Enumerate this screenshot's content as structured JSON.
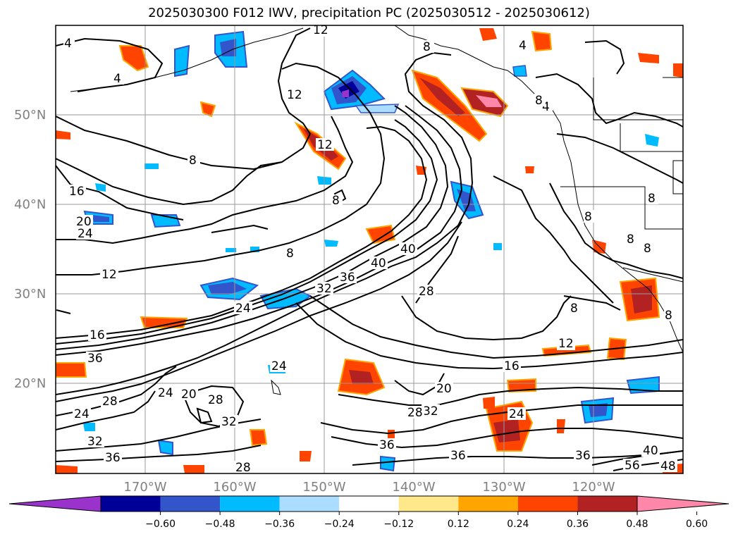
{
  "title": "2025030300 F012 IWV, precipitation PC (2025030512 - 2025030612)",
  "latitude_labels": [
    "50°N",
    "40°N",
    "30°N",
    "20°N"
  ],
  "longitude_labels": [
    "170°W",
    "160°W",
    "150°W",
    "140°W",
    "130°W",
    "120°W"
  ],
  "colorbar": {
    "tick_labels": [
      "−0.60",
      "−0.48",
      "−0.36",
      "−0.24",
      "−0.12",
      "0.12",
      "0.24",
      "0.36",
      "0.48",
      "0.60"
    ],
    "bins": [
      {
        "color": "#9933cc"
      },
      {
        "color": "#000099"
      },
      {
        "color": "#3355cc"
      },
      {
        "color": "#00bbff"
      },
      {
        "color": "#aaddff"
      },
      {
        "color": "#ffffff"
      },
      {
        "color": "#ffe88a"
      },
      {
        "color": "#ffa500"
      },
      {
        "color": "#ff4400"
      },
      {
        "color": "#b22222"
      },
      {
        "color": "#ff88aa"
      }
    ]
  },
  "contour_labels": [
    "4",
    "12",
    "8",
    "4",
    "12",
    "4",
    "8",
    "12",
    "8",
    "16",
    "20",
    "24",
    "8",
    "8",
    "12",
    "40",
    "36",
    "32",
    "40",
    "28",
    "24",
    "8",
    "16",
    "36",
    "12",
    "16",
    "24",
    "20",
    "28",
    "24",
    "28",
    "32",
    "20",
    "32",
    "36",
    "24",
    "32",
    "24",
    "36",
    "28",
    "36",
    "36",
    "56",
    "40",
    "28",
    "48",
    "8",
    "8",
    "8",
    "8",
    "4",
    "8"
  ]
}
